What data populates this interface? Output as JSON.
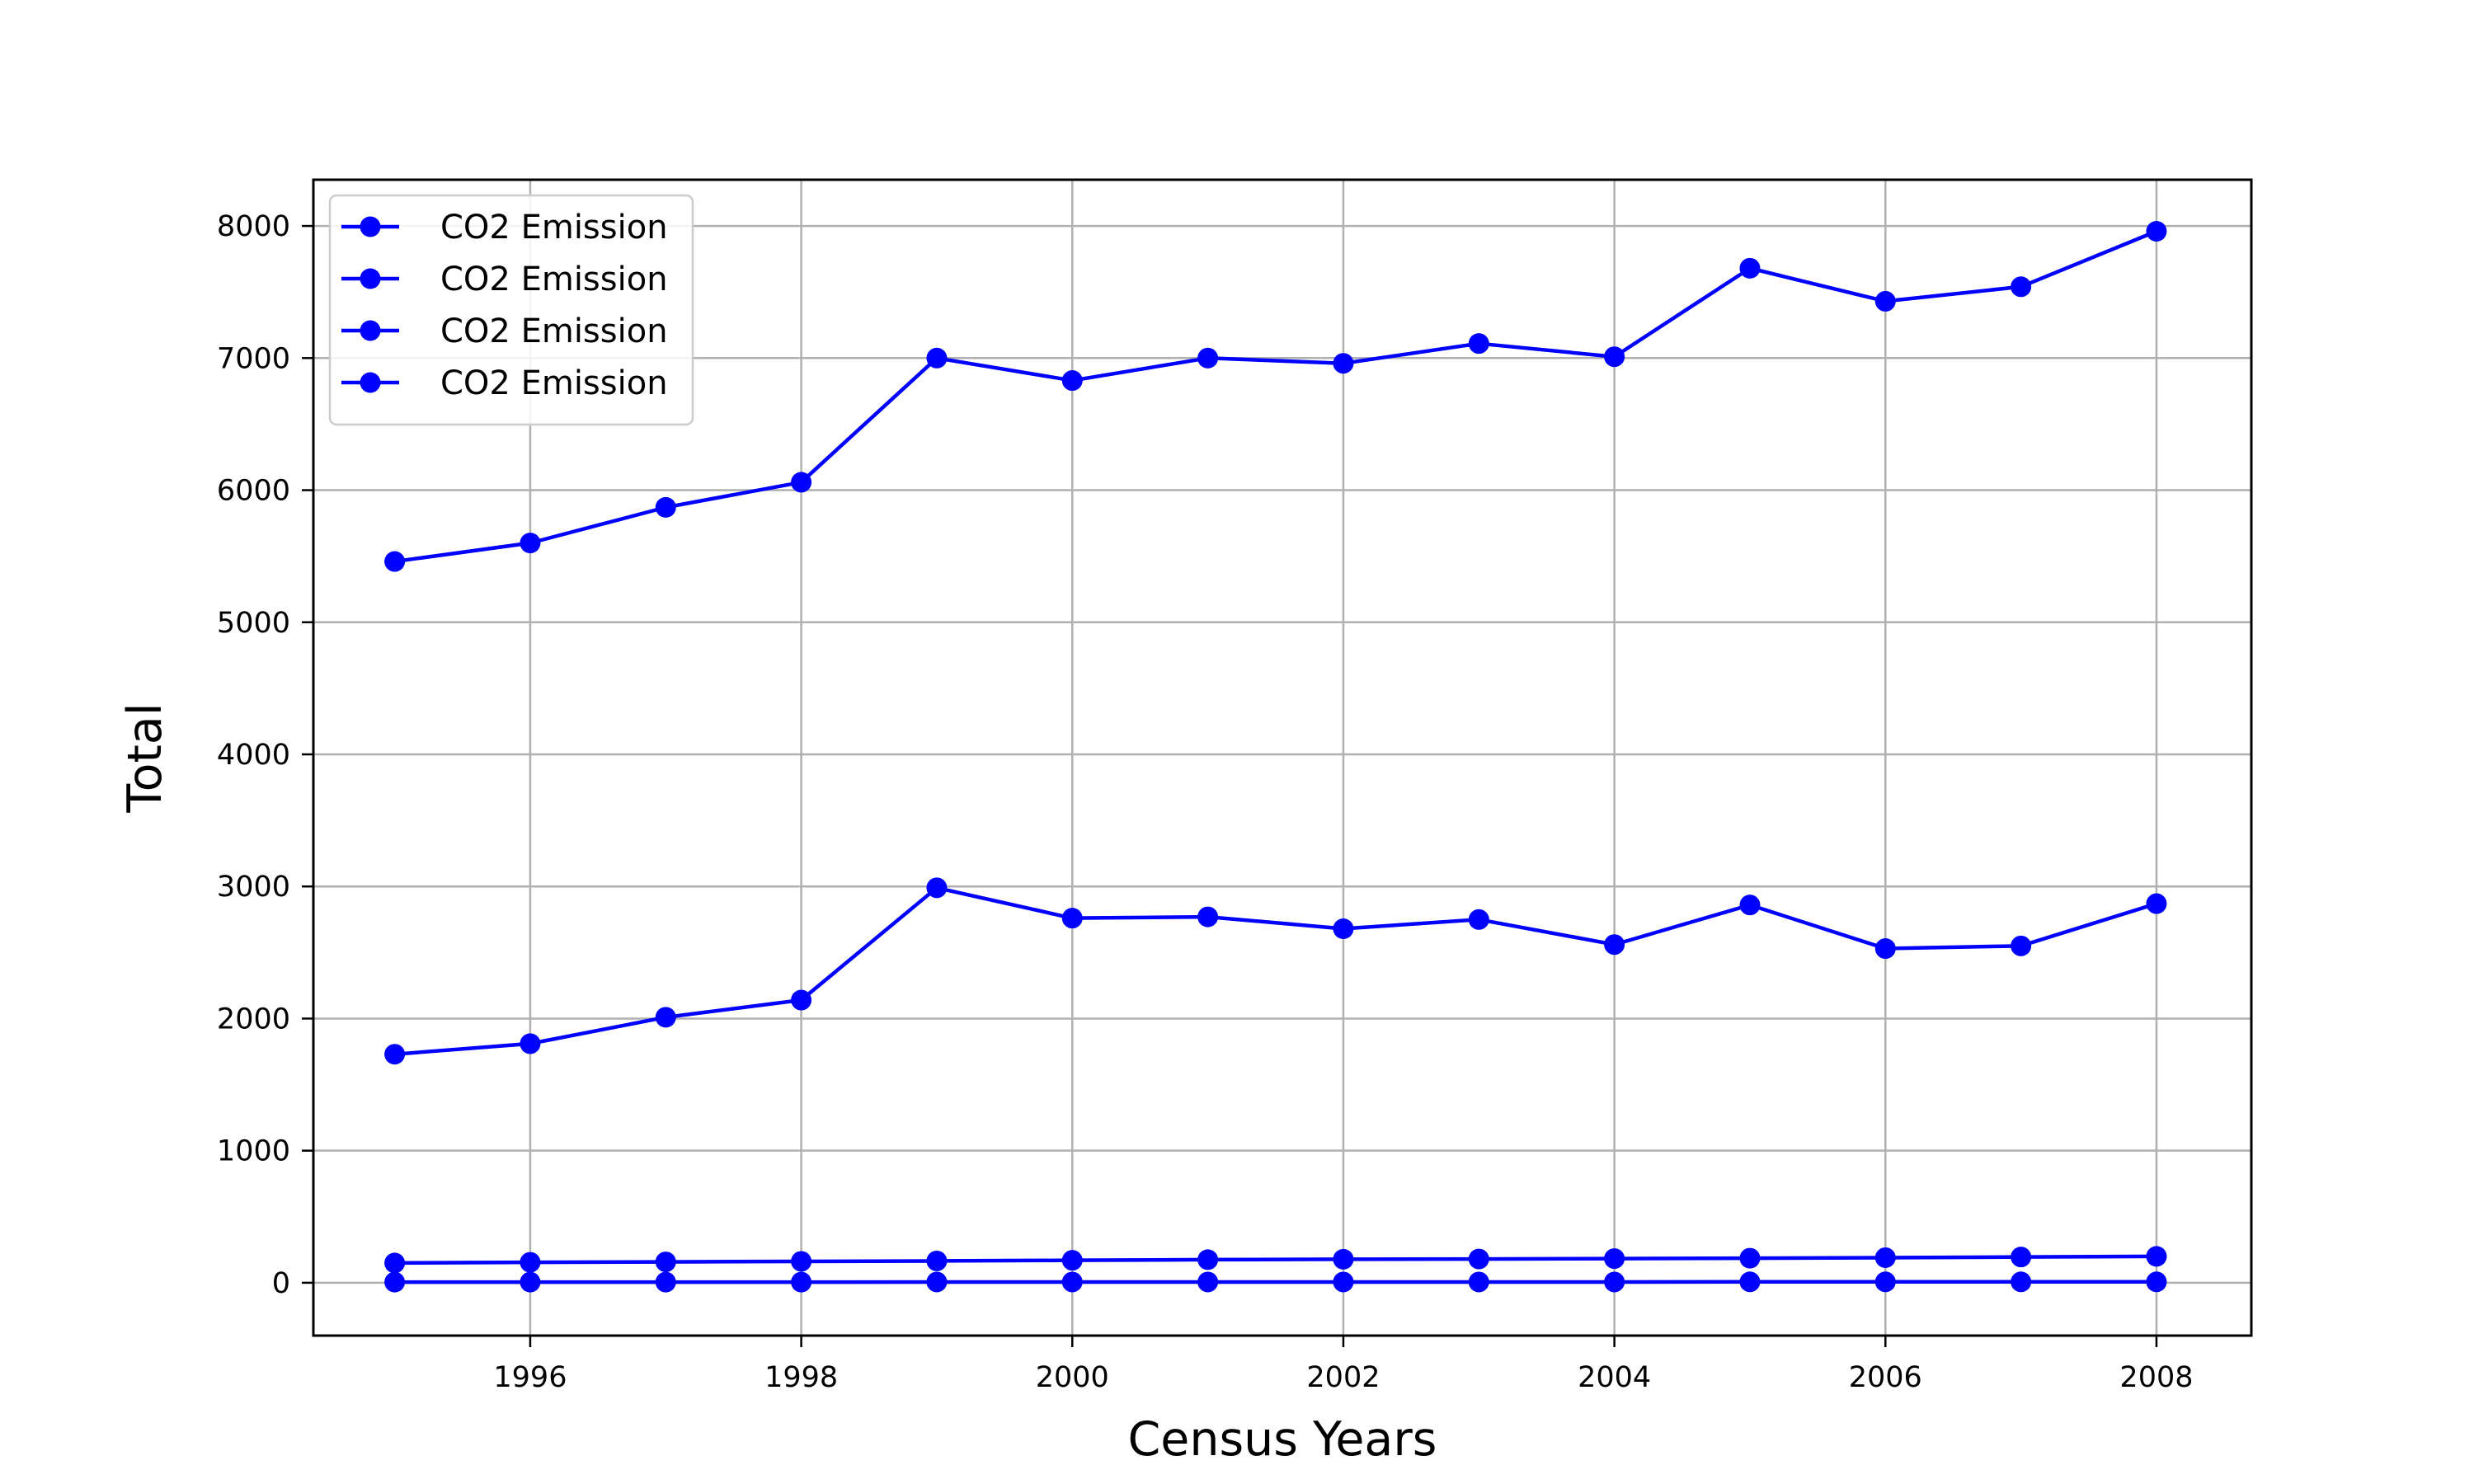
{
  "chart_data": {
    "type": "line",
    "title": "",
    "xlabel": "Census Years",
    "ylabel": "Total",
    "xlim": [
      1994.4,
      2008.7
    ],
    "ylim": [
      -400,
      8350
    ],
    "xticks": [
      1996,
      1998,
      2000,
      2002,
      2004,
      2006,
      2008
    ],
    "yticks": [
      0,
      1000,
      2000,
      3000,
      4000,
      5000,
      6000,
      7000,
      8000
    ],
    "grid": true,
    "legend_position": "top-left",
    "x": [
      1995,
      1996,
      1997,
      1998,
      1999,
      2000,
      2001,
      2002,
      2003,
      2004,
      2005,
      2006,
      2007,
      2008
    ],
    "series": [
      {
        "name": "CO2 Emission",
        "color": "#0000ff",
        "values": [
          5460,
          5600,
          5870,
          6060,
          7000,
          6830,
          7000,
          6960,
          7110,
          7010,
          7680,
          7430,
          7540,
          7960
        ]
      },
      {
        "name": "CO2 Emission",
        "color": "#0000ff",
        "values": [
          1730,
          1810,
          2010,
          2140,
          2990,
          2760,
          2770,
          2680,
          2750,
          2560,
          2860,
          2530,
          2550,
          2870
        ]
      },
      {
        "name": "CO2 Emission",
        "color": "#0000ff",
        "values": [
          150,
          155,
          158,
          162,
          165,
          170,
          175,
          178,
          180,
          183,
          186,
          190,
          195,
          200
        ]
      },
      {
        "name": "CO2 Emission",
        "color": "#0000ff",
        "values": [
          5,
          5,
          5,
          5,
          6,
          6,
          6,
          6,
          6,
          6,
          7,
          7,
          7,
          7
        ]
      }
    ]
  }
}
